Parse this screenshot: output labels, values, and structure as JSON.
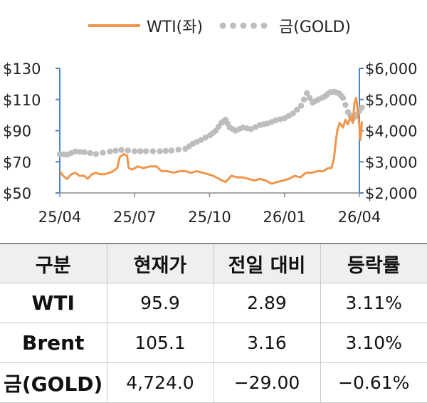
{
  "chart_data": {
    "type": "line",
    "legend": {
      "placement": "top-center"
    },
    "x_ticks": [
      "25/04",
      "25/07",
      "25/10",
      "26/01",
      "26/04"
    ],
    "y_left": {
      "ticks": [
        "$130",
        "$110",
        "$90",
        "$70",
        "$50"
      ],
      "range": [
        50,
        130
      ]
    },
    "y_right": {
      "ticks": [
        "$6,000",
        "$5,000",
        "$4,000",
        "$3,000",
        "$2,000"
      ],
      "range": [
        2000,
        6000
      ]
    },
    "grid": false,
    "series": [
      {
        "name": "WTI(좌)",
        "axis": "left",
        "style": "solid",
        "color": "#f0954a",
        "points": [
          [
            "2025-04-01",
            64
          ],
          [
            "2025-04-05",
            61
          ],
          [
            "2025-04-10",
            59
          ],
          [
            "2025-04-15",
            62
          ],
          [
            "2025-04-20",
            63
          ],
          [
            "2025-04-25",
            61
          ],
          [
            "2025-05-01",
            61
          ],
          [
            "2025-05-05",
            59
          ],
          [
            "2025-05-10",
            62
          ],
          [
            "2025-05-15",
            63
          ],
          [
            "2025-05-20",
            62
          ],
          [
            "2025-05-25",
            62
          ],
          [
            "2025-06-01",
            63
          ],
          [
            "2025-06-05",
            64
          ],
          [
            "2025-06-10",
            66
          ],
          [
            "2025-06-13",
            73
          ],
          [
            "2025-06-18",
            75
          ],
          [
            "2025-06-22",
            74
          ],
          [
            "2025-06-24",
            66
          ],
          [
            "2025-06-28",
            65
          ],
          [
            "2025-07-05",
            67
          ],
          [
            "2025-07-12",
            66
          ],
          [
            "2025-07-20",
            67
          ],
          [
            "2025-07-28",
            67
          ],
          [
            "2025-08-03",
            64
          ],
          [
            "2025-08-10",
            64
          ],
          [
            "2025-08-18",
            63
          ],
          [
            "2025-08-25",
            64
          ],
          [
            "2025-09-01",
            64
          ],
          [
            "2025-09-08",
            63
          ],
          [
            "2025-09-15",
            64
          ],
          [
            "2025-09-22",
            63
          ],
          [
            "2025-09-29",
            62
          ],
          [
            "2025-10-05",
            61
          ],
          [
            "2025-10-12",
            59
          ],
          [
            "2025-10-20",
            57
          ],
          [
            "2025-10-27",
            61
          ],
          [
            "2025-11-03",
            60
          ],
          [
            "2025-11-10",
            60
          ],
          [
            "2025-11-17",
            59
          ],
          [
            "2025-11-24",
            58
          ],
          [
            "2025-12-01",
            59
          ],
          [
            "2025-12-08",
            58
          ],
          [
            "2025-12-15",
            56
          ],
          [
            "2025-12-22",
            57
          ],
          [
            "2025-12-29",
            58
          ],
          [
            "2026-01-05",
            59
          ],
          [
            "2026-01-12",
            61
          ],
          [
            "2026-01-19",
            60
          ],
          [
            "2026-01-26",
            63
          ],
          [
            "2026-02-02",
            63
          ],
          [
            "2026-02-09",
            64
          ],
          [
            "2026-02-16",
            64
          ],
          [
            "2026-02-22",
            66
          ],
          [
            "2026-02-26",
            66
          ],
          [
            "2026-03-01",
            72
          ],
          [
            "2026-03-03",
            82
          ],
          [
            "2026-03-05",
            90
          ],
          [
            "2026-03-08",
            95
          ],
          [
            "2026-03-12",
            92
          ],
          [
            "2026-03-15",
            97
          ],
          [
            "2026-03-18",
            94
          ],
          [
            "2026-03-21",
            99
          ],
          [
            "2026-03-24",
            95
          ],
          [
            "2026-03-26",
            108
          ],
          [
            "2026-03-28",
            111
          ],
          [
            "2026-03-30",
            103
          ],
          [
            "2026-04-01",
            93
          ],
          [
            "2026-04-02",
            84
          ],
          [
            "2026-04-03",
            88
          ],
          [
            "2026-04-04",
            96
          ]
        ]
      },
      {
        "name": "금(GOLD)",
        "axis": "right",
        "style": "dotted",
        "color": "#bdbdbd",
        "points": [
          [
            "2025-04-01",
            3250
          ],
          [
            "2025-04-10",
            3230
          ],
          [
            "2025-04-20",
            3330
          ],
          [
            "2025-05-01",
            3310
          ],
          [
            "2025-05-15",
            3250
          ],
          [
            "2025-06-01",
            3330
          ],
          [
            "2025-06-15",
            3380
          ],
          [
            "2025-07-01",
            3340
          ],
          [
            "2025-07-15",
            3340
          ],
          [
            "2025-08-01",
            3340
          ],
          [
            "2025-08-15",
            3360
          ],
          [
            "2025-09-01",
            3420
          ],
          [
            "2025-09-10",
            3580
          ],
          [
            "2025-09-20",
            3700
          ],
          [
            "2025-10-01",
            3850
          ],
          [
            "2025-10-08",
            4000
          ],
          [
            "2025-10-15",
            4250
          ],
          [
            "2025-10-20",
            4350
          ],
          [
            "2025-10-25",
            4100
          ],
          [
            "2025-11-01",
            4000
          ],
          [
            "2025-11-10",
            4100
          ],
          [
            "2025-11-20",
            4050
          ],
          [
            "2025-12-01",
            4180
          ],
          [
            "2025-12-10",
            4230
          ],
          [
            "2025-12-20",
            4330
          ],
          [
            "2025-12-31",
            4400
          ],
          [
            "2026-01-10",
            4550
          ],
          [
            "2026-01-20",
            4800
          ],
          [
            "2026-01-27",
            5200
          ],
          [
            "2026-02-03",
            4900
          ],
          [
            "2026-02-10",
            5000
          ],
          [
            "2026-02-18",
            5100
          ],
          [
            "2026-02-24",
            5230
          ],
          [
            "2026-03-01",
            5250
          ],
          [
            "2026-03-07",
            5200
          ],
          [
            "2026-03-12",
            5050
          ],
          [
            "2026-03-18",
            4600
          ],
          [
            "2026-03-24",
            4380
          ],
          [
            "2026-03-29",
            4520
          ],
          [
            "2026-04-04",
            4740
          ]
        ]
      }
    ]
  },
  "table": {
    "headers": [
      "구분",
      "현재가",
      "전일 대비",
      "등락률"
    ],
    "rows": [
      {
        "label": "WTI",
        "price": "95.9",
        "change": "2.89",
        "rate": "3.11%"
      },
      {
        "label": "Brent",
        "price": "105.1",
        "change": "3.16",
        "rate": "3.10%"
      },
      {
        "label": "금(GOLD)",
        "price": "4,724.0",
        "change": "−29.00",
        "rate": "−0.61%"
      }
    ]
  }
}
